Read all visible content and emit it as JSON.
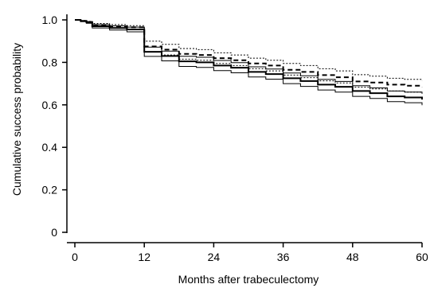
{
  "chart_data": {
    "type": "line",
    "title": "",
    "xlabel": "Months after trabeculectomy",
    "ylabel": "Cumulative success probability",
    "xlim": [
      0,
      60
    ],
    "ylim": [
      0,
      1.0
    ],
    "x_ticks": [
      0,
      12,
      24,
      36,
      48,
      60
    ],
    "y_ticks": [
      0,
      0.2,
      0.4,
      0.6,
      0.8,
      1.0
    ],
    "x_tick_labels": [
      "0",
      "12",
      "24",
      "36",
      "48",
      "60"
    ],
    "y_tick_labels": [
      "0",
      "0.2",
      "0.4",
      "0.6",
      "0.8",
      "1.0"
    ],
    "grid": false,
    "legend": "none",
    "series": [
      {
        "style": "dashed",
        "line": "thick",
        "color": "#000000",
        "points": [
          [
            0,
            1.0
          ],
          [
            1,
            0.995
          ],
          [
            2,
            0.99
          ],
          [
            3,
            0.975
          ],
          [
            6,
            0.97
          ],
          [
            9,
            0.965
          ],
          [
            12,
            0.875
          ],
          [
            15,
            0.86
          ],
          [
            18,
            0.84
          ],
          [
            21,
            0.835
          ],
          [
            24,
            0.82
          ],
          [
            27,
            0.81
          ],
          [
            30,
            0.795
          ],
          [
            33,
            0.785
          ],
          [
            36,
            0.765
          ],
          [
            39,
            0.755
          ],
          [
            42,
            0.74
          ],
          [
            45,
            0.73
          ],
          [
            48,
            0.71
          ],
          [
            51,
            0.705
          ],
          [
            54,
            0.695
          ],
          [
            57,
            0.69
          ],
          [
            60,
            0.685
          ]
        ]
      },
      {
        "style": "dotted",
        "line": "thin",
        "color": "#000000",
        "points": [
          [
            0,
            1.0
          ],
          [
            1,
            0.997
          ],
          [
            2,
            0.993
          ],
          [
            3,
            0.983
          ],
          [
            6,
            0.978
          ],
          [
            9,
            0.973
          ],
          [
            12,
            0.9
          ],
          [
            15,
            0.885
          ],
          [
            18,
            0.865
          ],
          [
            21,
            0.86
          ],
          [
            24,
            0.845
          ],
          [
            27,
            0.835
          ],
          [
            30,
            0.82
          ],
          [
            33,
            0.81
          ],
          [
            36,
            0.795
          ],
          [
            39,
            0.785
          ],
          [
            42,
            0.77
          ],
          [
            45,
            0.76
          ],
          [
            48,
            0.742
          ],
          [
            51,
            0.735
          ],
          [
            54,
            0.725
          ],
          [
            57,
            0.72
          ],
          [
            60,
            0.715
          ]
        ]
      },
      {
        "style": "dotted",
        "line": "thin",
        "color": "#000000",
        "points": [
          [
            0,
            1.0
          ],
          [
            1,
            0.993
          ],
          [
            2,
            0.987
          ],
          [
            3,
            0.968
          ],
          [
            6,
            0.962
          ],
          [
            9,
            0.957
          ],
          [
            12,
            0.85
          ],
          [
            15,
            0.835
          ],
          [
            18,
            0.815
          ],
          [
            21,
            0.81
          ],
          [
            24,
            0.795
          ],
          [
            27,
            0.785
          ],
          [
            30,
            0.77
          ],
          [
            33,
            0.76
          ],
          [
            36,
            0.74
          ],
          [
            39,
            0.728
          ],
          [
            42,
            0.713
          ],
          [
            45,
            0.703
          ],
          [
            48,
            0.683
          ],
          [
            51,
            0.675
          ],
          [
            54,
            0.665
          ],
          [
            57,
            0.66
          ],
          [
            60,
            0.655
          ]
        ]
      },
      {
        "style": "solid",
        "line": "thick",
        "color": "#000000",
        "points": [
          [
            0,
            1.0
          ],
          [
            1,
            0.994
          ],
          [
            2,
            0.988
          ],
          [
            3,
            0.97
          ],
          [
            6,
            0.962
          ],
          [
            9,
            0.955
          ],
          [
            12,
            0.85
          ],
          [
            15,
            0.83
          ],
          [
            18,
            0.805
          ],
          [
            21,
            0.8
          ],
          [
            24,
            0.785
          ],
          [
            27,
            0.775
          ],
          [
            30,
            0.755
          ],
          [
            33,
            0.745
          ],
          [
            36,
            0.725
          ],
          [
            39,
            0.712
          ],
          [
            42,
            0.695
          ],
          [
            45,
            0.685
          ],
          [
            48,
            0.665
          ],
          [
            51,
            0.655
          ],
          [
            54,
            0.64
          ],
          [
            57,
            0.635
          ],
          [
            60,
            0.625
          ]
        ]
      },
      {
        "style": "solid",
        "line": "thin",
        "color": "#000000",
        "points": [
          [
            0,
            1.0
          ],
          [
            1,
            0.996
          ],
          [
            2,
            0.992
          ],
          [
            3,
            0.978
          ],
          [
            6,
            0.972
          ],
          [
            9,
            0.966
          ],
          [
            12,
            0.872
          ],
          [
            15,
            0.853
          ],
          [
            18,
            0.829
          ],
          [
            21,
            0.824
          ],
          [
            24,
            0.809
          ],
          [
            27,
            0.799
          ],
          [
            30,
            0.779
          ],
          [
            33,
            0.769
          ],
          [
            36,
            0.75
          ],
          [
            39,
            0.737
          ],
          [
            42,
            0.72
          ],
          [
            45,
            0.71
          ],
          [
            48,
            0.69
          ],
          [
            51,
            0.68
          ],
          [
            54,
            0.665
          ],
          [
            57,
            0.66
          ],
          [
            60,
            0.652
          ]
        ]
      },
      {
        "style": "solid",
        "line": "thin",
        "color": "#000000",
        "points": [
          [
            0,
            1.0
          ],
          [
            1,
            0.992
          ],
          [
            2,
            0.984
          ],
          [
            3,
            0.962
          ],
          [
            6,
            0.952
          ],
          [
            9,
            0.944
          ],
          [
            12,
            0.828
          ],
          [
            15,
            0.807
          ],
          [
            18,
            0.781
          ],
          [
            21,
            0.776
          ],
          [
            24,
            0.761
          ],
          [
            27,
            0.751
          ],
          [
            30,
            0.731
          ],
          [
            33,
            0.721
          ],
          [
            36,
            0.7
          ],
          [
            39,
            0.687
          ],
          [
            42,
            0.67
          ],
          [
            45,
            0.66
          ],
          [
            48,
            0.64
          ],
          [
            51,
            0.63
          ],
          [
            54,
            0.615
          ],
          [
            57,
            0.61
          ],
          [
            60,
            0.598
          ]
        ]
      }
    ]
  }
}
